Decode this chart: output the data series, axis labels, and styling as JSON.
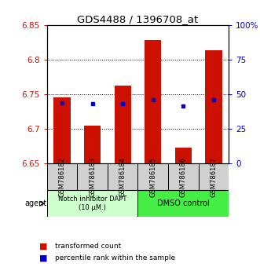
{
  "title": "GDS4488 / 1396708_at",
  "samples": [
    "GSM786182",
    "GSM786183",
    "GSM786184",
    "GSM786185",
    "GSM786186",
    "GSM786187"
  ],
  "bar_bottoms": [
    6.65,
    6.65,
    6.65,
    6.65,
    6.65,
    6.65
  ],
  "bar_tops": [
    6.745,
    6.705,
    6.762,
    6.828,
    6.673,
    6.814
  ],
  "percentile_values": [
    6.738,
    6.737,
    6.737,
    6.742,
    6.733,
    6.742
  ],
  "ylim_left": [
    6.65,
    6.85
  ],
  "ylim_right": [
    0,
    100
  ],
  "yticks_left": [
    6.65,
    6.7,
    6.75,
    6.8,
    6.85
  ],
  "ytick_labels_left": [
    "6.65",
    "6.7",
    "6.75",
    "6.8",
    "6.85"
  ],
  "yticks_right": [
    0,
    25,
    50,
    75,
    100
  ],
  "ytick_labels_right": [
    "0",
    "25",
    "50",
    "75",
    "100%"
  ],
  "hlines": [
    6.7,
    6.75,
    6.8
  ],
  "bar_color": "#cc1100",
  "percentile_color": "#0000cc",
  "group1_label": "Notch inhibitor DAPT\n(10 μM.)",
  "group2_label": "DMSO control",
  "group1_color": "#ccffcc",
  "group2_color": "#44ee44",
  "group1_indices": [
    0,
    1,
    2
  ],
  "group2_indices": [
    3,
    4,
    5
  ],
  "legend_red": "transformed count",
  "legend_blue": "percentile rank within the sample",
  "bar_width": 0.55,
  "sample_box_color": "#d0d0d0"
}
